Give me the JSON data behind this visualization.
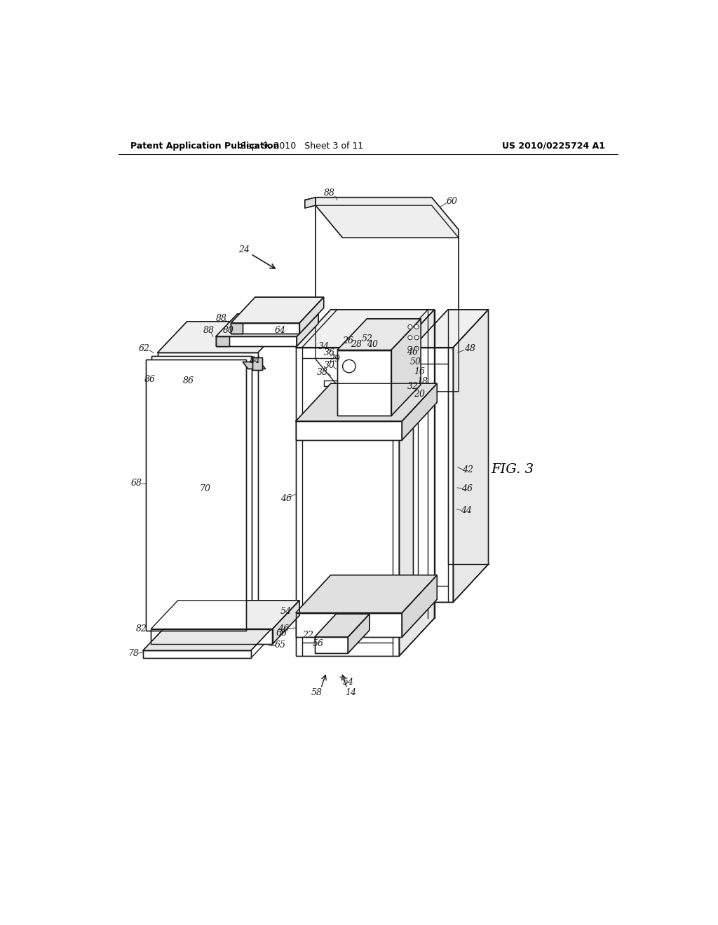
{
  "background_color": "#ffffff",
  "header_left": "Patent Application Publication",
  "header_center": "Sep. 9, 2010   Sheet 3 of 11",
  "header_right": "US 2010/0225724 A1",
  "figure_label": "FIG. 3",
  "lc": "#1a1a1a",
  "lw": 1.0,
  "lfs": 9.0,
  "hfs": 9.0,
  "ffs": 14.0
}
